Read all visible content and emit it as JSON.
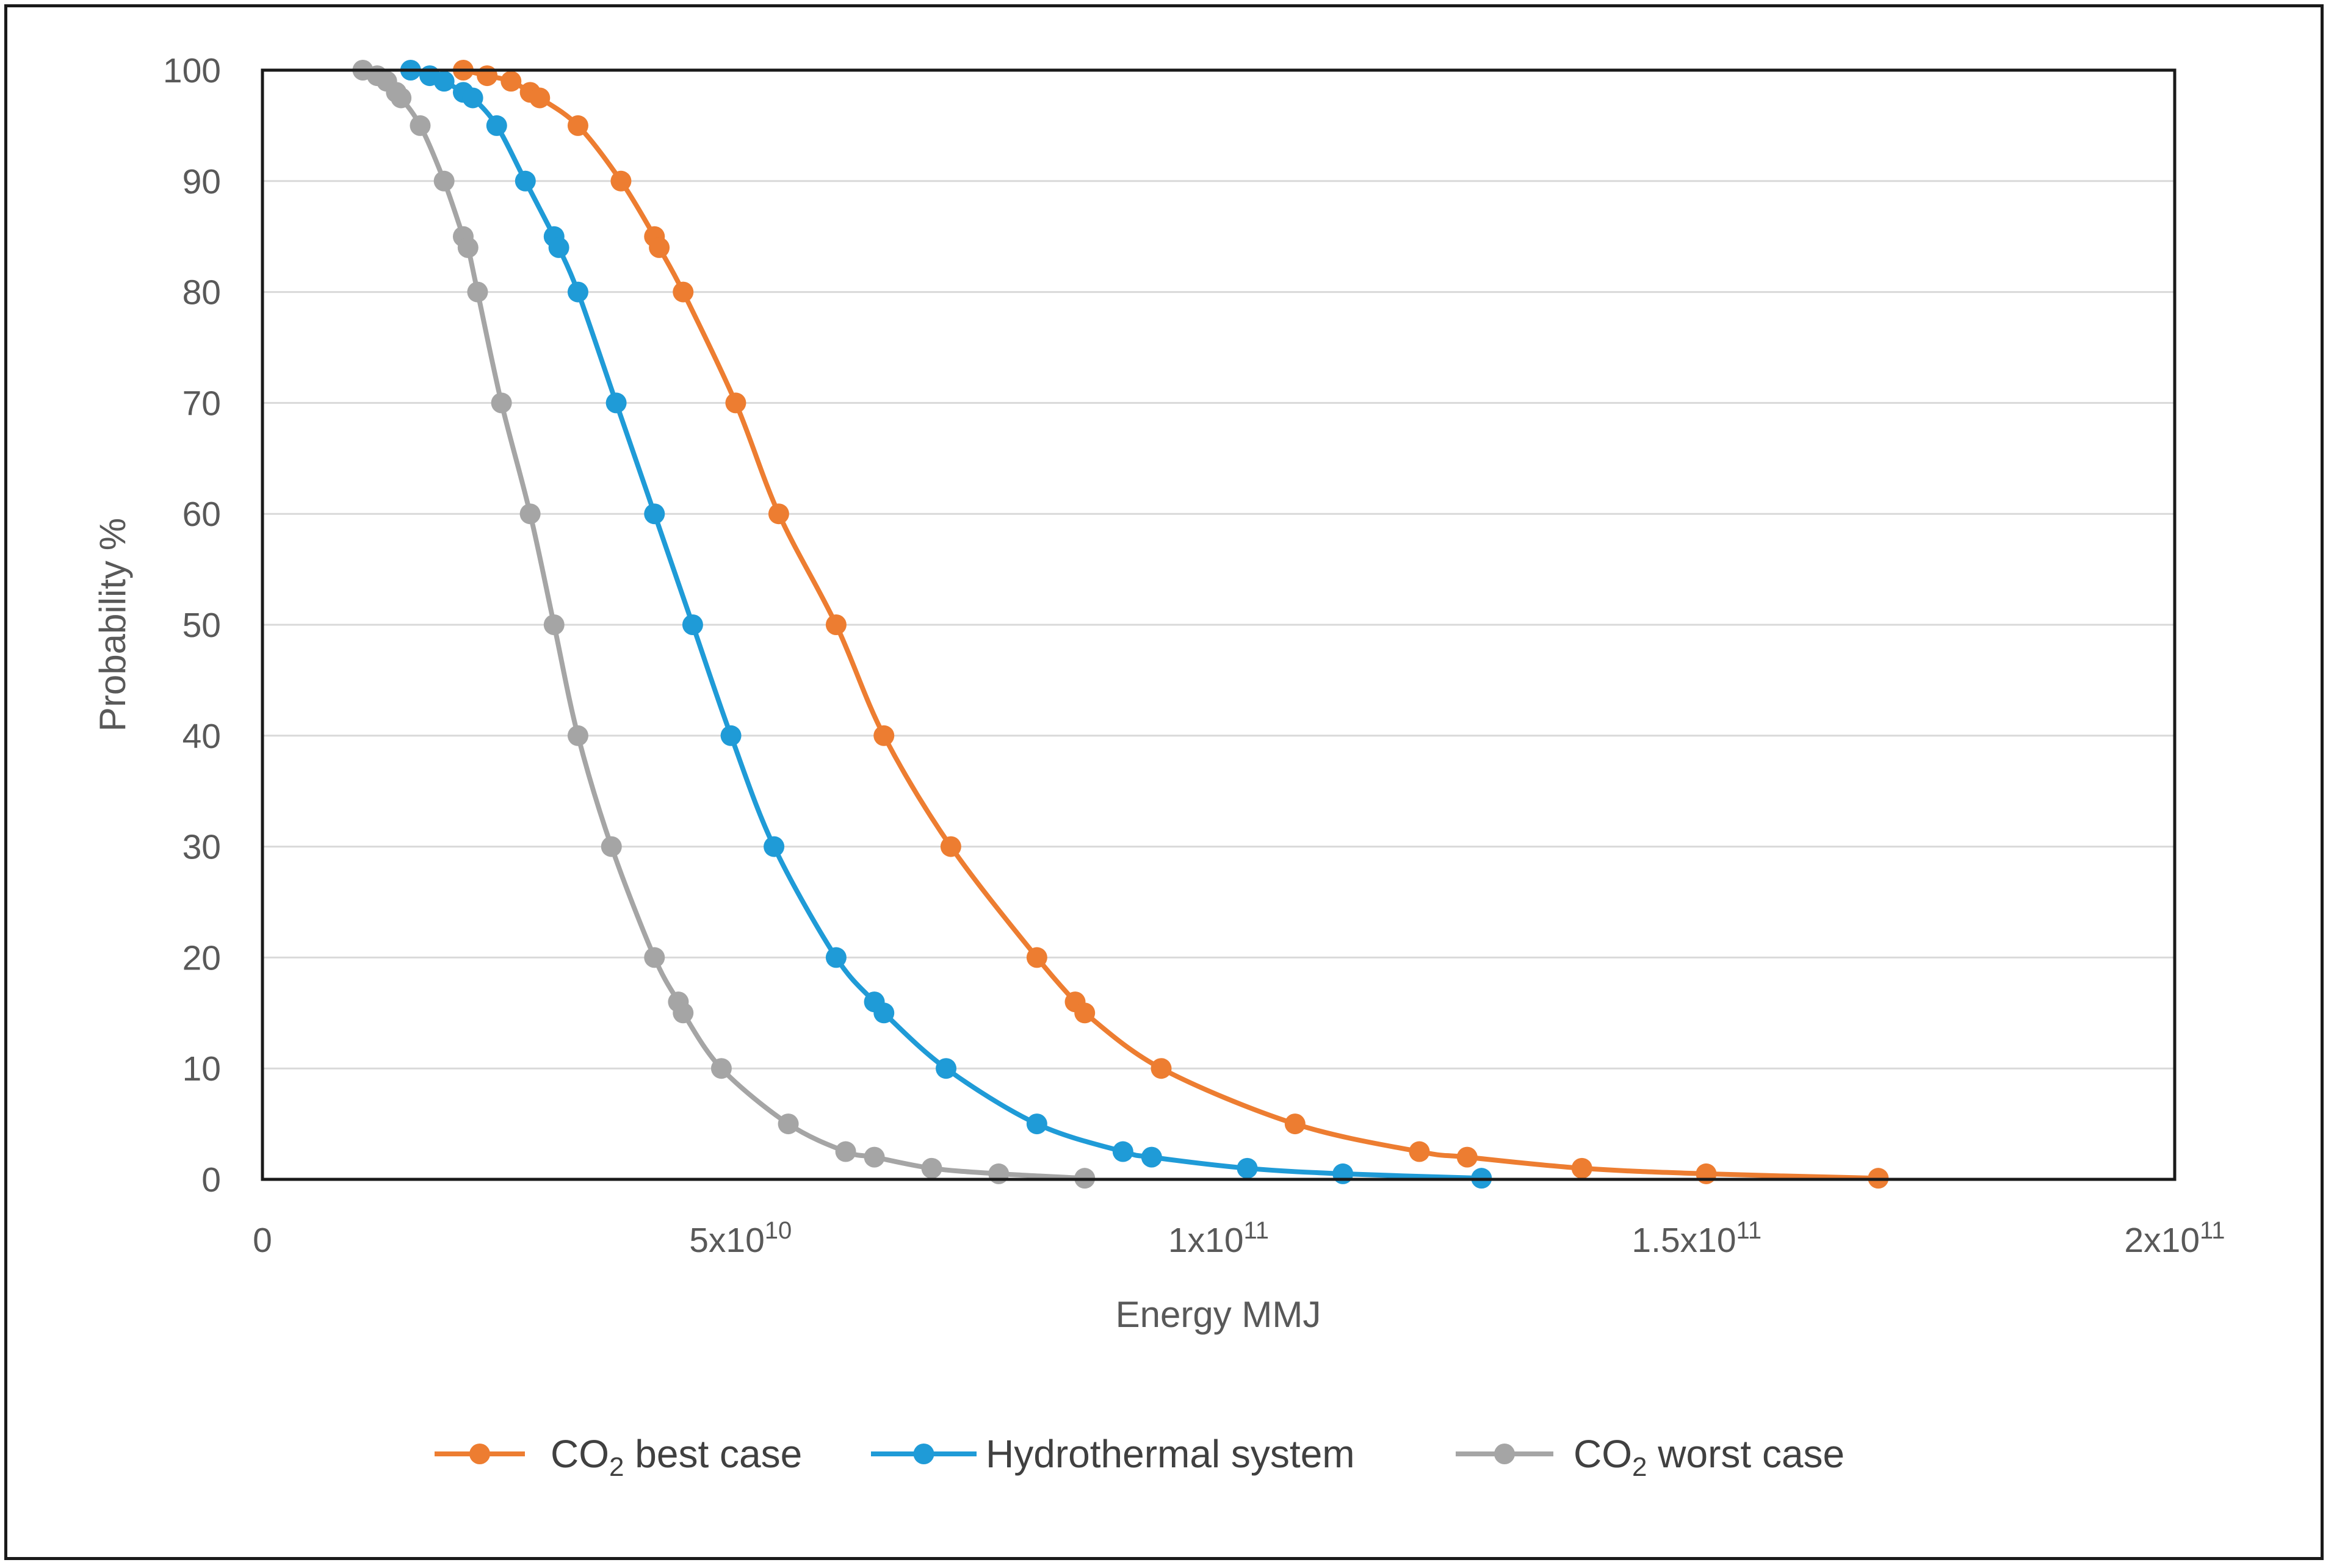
{
  "chart_data": {
    "type": "line",
    "title": "",
    "xlabel": "Energy MMJ",
    "ylabel": "Probability %",
    "xlim": [
      0,
      200000000000
    ],
    "ylim": [
      0,
      100
    ],
    "x_ticks": [
      {
        "value": 0,
        "mantissa": "0",
        "exponent": ""
      },
      {
        "value": 50000000000,
        "mantissa": "5x10",
        "exponent": "10"
      },
      {
        "value": 100000000000,
        "mantissa": "1x10",
        "exponent": "11"
      },
      {
        "value": 150000000000,
        "mantissa": "1.5x10",
        "exponent": "11"
      },
      {
        "value": 200000000000,
        "mantissa": "2x10",
        "exponent": "11"
      }
    ],
    "y_ticks": [
      0,
      10,
      20,
      30,
      40,
      50,
      60,
      70,
      80,
      90,
      100
    ],
    "grid": "horizontal",
    "legend_position": "bottom",
    "series": [
      {
        "name": "CO2 best case",
        "label_main": "CO",
        "label_sub": "2",
        "label_rest": " best case",
        "color": "#ED7D31",
        "x": [
          21000000000,
          23500000000,
          26000000000,
          28000000000,
          29000000000,
          33000000000,
          37500000000,
          41000000000,
          41500000000,
          44000000000,
          49500000000,
          54000000000,
          60000000000,
          65000000000,
          72000000000,
          81000000000,
          85000000000,
          86000000000,
          94000000000,
          108000000000,
          121000000000,
          126000000000,
          138000000000,
          151000000000,
          169000000000
        ],
        "y": [
          100,
          99.5,
          99,
          98,
          97.5,
          95,
          90,
          85,
          84,
          80,
          70,
          60,
          50,
          40,
          30,
          20,
          16,
          15,
          10,
          5,
          2.5,
          2,
          1,
          0.5,
          0.1
        ]
      },
      {
        "name": "Hydrothermal system",
        "label_main": "Hydrothermal system",
        "label_sub": "",
        "label_rest": "",
        "color": "#1F9BD7",
        "x": [
          15500000000,
          17500000000,
          19000000000,
          21000000000,
          22000000000,
          24500000000,
          27500000000,
          30500000000,
          31000000000,
          33000000000,
          37000000000,
          41000000000,
          45000000000,
          49000000000,
          53500000000,
          60000000000,
          64000000000,
          65000000000,
          71500000000,
          81000000000,
          90000000000,
          93000000000,
          103000000000,
          113000000000,
          127500000000
        ],
        "y": [
          100,
          99.5,
          99,
          98,
          97.5,
          95,
          90,
          85,
          84,
          80,
          70,
          60,
          50,
          40,
          30,
          20,
          16,
          15,
          10,
          5,
          2.5,
          2,
          1,
          0.5,
          0.1
        ]
      },
      {
        "name": "CO2 worst case",
        "label_main": "CO",
        "label_sub": "2",
        "label_rest": " worst case",
        "color": "#A5A5A5",
        "x": [
          10500000000,
          12000000000,
          13000000000,
          14000000000,
          14500000000,
          16500000000,
          19000000000,
          21000000000,
          21500000000,
          22500000000,
          25000000000,
          28000000000,
          30500000000,
          33000000000,
          36500000000,
          41000000000,
          43500000000,
          44000000000,
          48000000000,
          55000000000,
          61000000000,
          64000000000,
          70000000000,
          77000000000,
          86000000000
        ],
        "y": [
          100,
          99.5,
          99,
          98,
          97.5,
          95,
          90,
          85,
          84,
          80,
          70,
          60,
          50,
          40,
          30,
          20,
          16,
          15,
          10,
          5,
          2.5,
          2,
          1,
          0.5,
          0.1
        ]
      }
    ]
  }
}
